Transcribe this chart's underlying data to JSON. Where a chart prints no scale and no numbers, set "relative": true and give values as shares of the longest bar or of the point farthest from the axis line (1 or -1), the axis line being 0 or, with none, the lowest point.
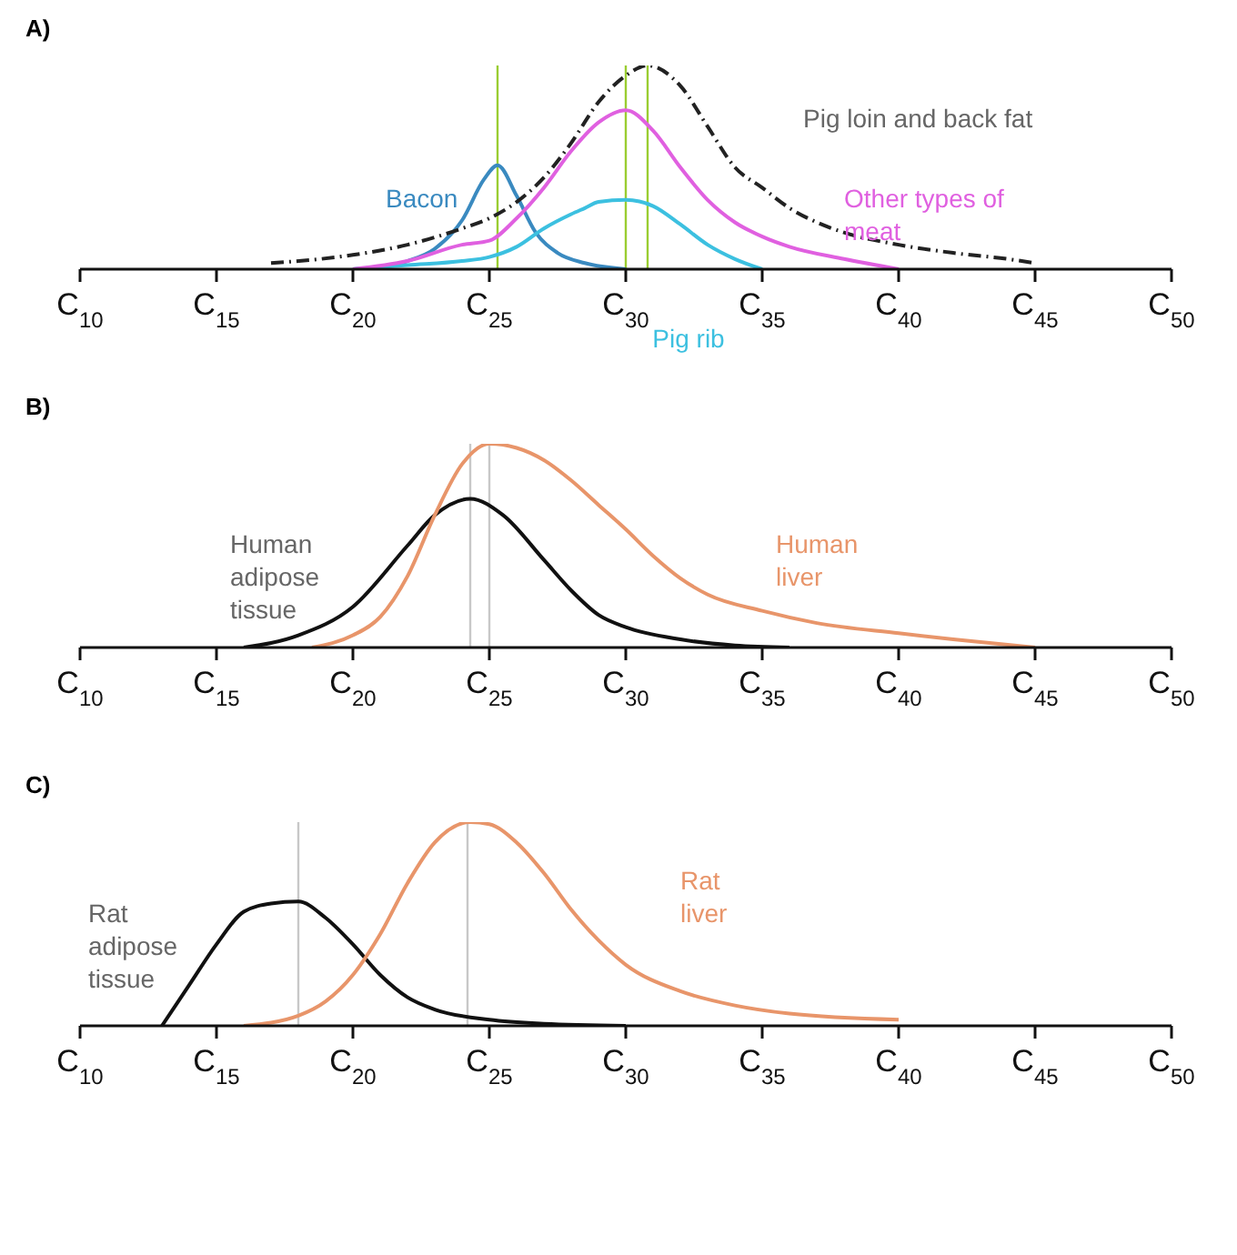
{
  "chart_data": [
    {
      "type": "line",
      "title": "A)",
      "relative": true,
      "xlim": [
        10,
        50
      ],
      "xticks": [
        {
          "value": 10,
          "label": "C$_{10}$"
        },
        {
          "value": 15,
          "label": "C$_{15}$"
        },
        {
          "value": 20,
          "label": "C$_{20}$"
        },
        {
          "value": 25,
          "label": "C$_{25}$"
        },
        {
          "value": 30,
          "label": "C$_{30}$"
        },
        {
          "value": 35,
          "label": "C$_{35}$"
        },
        {
          "value": 40,
          "label": "C$_{40}$"
        },
        {
          "value": 45,
          "label": "C$_{45}$"
        },
        {
          "value": 50,
          "label": "C$_{50}$"
        }
      ],
      "grid": false,
      "legend": false,
      "marker": "none",
      "series": [
        {
          "name": "Bacon",
          "color": "#3a8ac0",
          "x": [
            20,
            21,
            22,
            23,
            24,
            24.8,
            25.3,
            26,
            26.7,
            27.5,
            28.5,
            30
          ],
          "values": [
            0,
            0.01,
            0.04,
            0.1,
            0.24,
            0.44,
            0.51,
            0.36,
            0.18,
            0.08,
            0.03,
            0
          ]
        },
        {
          "name": "Pig rib",
          "color": "#3cc0e0",
          "x": [
            20,
            22,
            24,
            25,
            26,
            27,
            28,
            28.5,
            29,
            30,
            31,
            32,
            33,
            34,
            35
          ],
          "values": [
            0,
            0.02,
            0.04,
            0.06,
            0.11,
            0.2,
            0.27,
            0.3,
            0.33,
            0.34,
            0.31,
            0.22,
            0.12,
            0.05,
            0
          ]
        },
        {
          "name": "Other types of meat",
          "color": "#e060e0",
          "x": [
            20,
            22,
            24,
            25,
            26,
            27,
            28,
            29,
            30,
            31,
            32,
            33,
            34,
            35,
            36,
            38,
            40
          ],
          "values": [
            0,
            0.04,
            0.12,
            0.14,
            0.25,
            0.4,
            0.58,
            0.72,
            0.78,
            0.68,
            0.5,
            0.34,
            0.23,
            0.16,
            0.11,
            0.05,
            0
          ]
        },
        {
          "name": "Pig loin and back fat",
          "color": "#222222",
          "line_style": "dashed",
          "x": [
            17,
            20,
            22,
            24,
            25,
            26,
            27,
            28,
            29,
            30,
            30.8,
            32,
            33,
            34,
            35,
            36,
            37,
            38,
            40,
            42,
            44,
            45
          ],
          "values": [
            0.03,
            0.07,
            0.12,
            0.2,
            0.25,
            0.33,
            0.45,
            0.62,
            0.82,
            0.95,
            1,
            0.9,
            0.7,
            0.5,
            0.4,
            0.3,
            0.23,
            0.18,
            0.12,
            0.08,
            0.05,
            0.03
          ]
        }
      ],
      "ref_lines": [
        {
          "axis": "x",
          "value": 25.3,
          "color": "#9acd32"
        },
        {
          "axis": "x",
          "value": 30,
          "color": "#9acd32"
        },
        {
          "axis": "x",
          "value": 30.8,
          "color": "#9acd32"
        }
      ]
    },
    {
      "type": "line",
      "title": "B)",
      "relative": true,
      "xlim": [
        10,
        50
      ],
      "xticks": [
        {
          "value": 10,
          "label": "C$_{10}$"
        },
        {
          "value": 15,
          "label": "C$_{15}$"
        },
        {
          "value": 20,
          "label": "C$_{20}$"
        },
        {
          "value": 25,
          "label": "C$_{25}$"
        },
        {
          "value": 30,
          "label": "C$_{30}$"
        },
        {
          "value": 35,
          "label": "C$_{35}$"
        },
        {
          "value": 40,
          "label": "C$_{40}$"
        },
        {
          "value": 45,
          "label": "C$_{45}$"
        },
        {
          "value": 50,
          "label": "C$_{50}$"
        }
      ],
      "grid": false,
      "legend": false,
      "marker": "none",
      "series": [
        {
          "name": "Human adipose tissue",
          "color": "#111111",
          "x": [
            16,
            18,
            20,
            22,
            23,
            24.3,
            25.5,
            27,
            28,
            29,
            30,
            32,
            34,
            36
          ],
          "values": [
            0,
            0.06,
            0.2,
            0.5,
            0.65,
            0.73,
            0.65,
            0.43,
            0.28,
            0.16,
            0.1,
            0.04,
            0.01,
            0
          ]
        },
        {
          "name": "Human liver",
          "color": "#e8956a",
          "x": [
            18.5,
            20,
            21,
            22,
            23,
            24,
            25,
            26,
            27,
            28,
            29,
            30,
            31,
            32,
            33,
            35,
            37,
            40,
            42,
            45
          ],
          "values": [
            0,
            0.06,
            0.15,
            0.35,
            0.65,
            0.9,
            1,
            0.98,
            0.92,
            0.82,
            0.7,
            0.58,
            0.45,
            0.34,
            0.26,
            0.18,
            0.12,
            0.07,
            0.04,
            0
          ]
        }
      ],
      "ref_lines": [
        {
          "axis": "x",
          "value": 24.3,
          "color": "#c8c8c8"
        },
        {
          "axis": "x",
          "value": 25,
          "color": "#c8c8c8"
        }
      ]
    },
    {
      "type": "line",
      "title": "C)",
      "relative": true,
      "xlim": [
        10,
        50
      ],
      "xticks": [
        {
          "value": 10,
          "label": "C$_{10}$"
        },
        {
          "value": 15,
          "label": "C$_{15}$"
        },
        {
          "value": 20,
          "label": "C$_{20}$"
        },
        {
          "value": 25,
          "label": "C$_{25}$"
        },
        {
          "value": 30,
          "label": "C$_{30}$"
        },
        {
          "value": 35,
          "label": "C$_{35}$"
        },
        {
          "value": 40,
          "label": "C$_{40}$"
        },
        {
          "value": 45,
          "label": "C$_{45}$"
        },
        {
          "value": 50,
          "label": "C$_{50}$"
        }
      ],
      "grid": false,
      "legend": false,
      "marker": "none",
      "series": [
        {
          "name": "Rat adipose tissue",
          "color": "#111111",
          "x": [
            13,
            14,
            15,
            16,
            17,
            18,
            19,
            20,
            21,
            22,
            23,
            25,
            27,
            30
          ],
          "values": [
            0,
            0.2,
            0.4,
            0.56,
            0.6,
            0.61,
            0.53,
            0.4,
            0.25,
            0.14,
            0.08,
            0.03,
            0.01,
            0
          ]
        },
        {
          "name": "Rat liver",
          "color": "#e8956a",
          "x": [
            16,
            18,
            19,
            20,
            21,
            22,
            23,
            24.3,
            25,
            26,
            27,
            28,
            29,
            30,
            32,
            34,
            36,
            40
          ],
          "values": [
            0,
            0.05,
            0.12,
            0.25,
            0.45,
            0.7,
            0.9,
            1,
            0.99,
            0.9,
            0.75,
            0.57,
            0.42,
            0.3,
            0.17,
            0.1,
            0.06,
            0.03
          ]
        }
      ],
      "ref_lines": [
        {
          "axis": "x",
          "value": 18,
          "color": "#c8c8c8"
        },
        {
          "axis": "x",
          "value": 24.2,
          "color": "#c8c8c8"
        }
      ]
    }
  ]
}
